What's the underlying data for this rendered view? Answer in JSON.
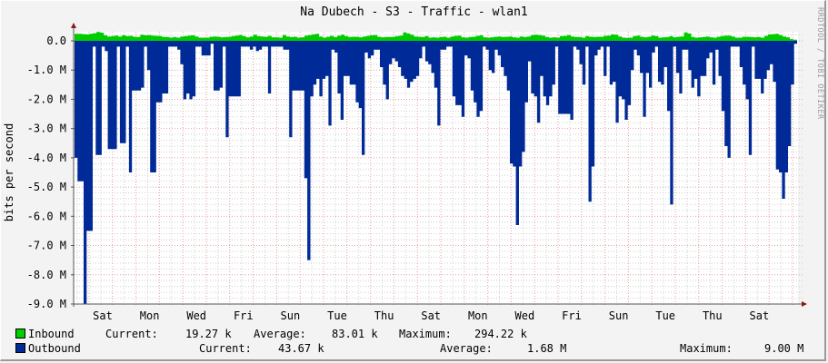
{
  "title": "Na Dubech - S3 - Traffic - wlan1",
  "watermark": "RRDTOOL / TOBI OETIKER",
  "colors": {
    "inbound": "#00cc00",
    "outbound": "#002a97",
    "background": "#f3f3f3",
    "plot_bg": "#ffffff",
    "major_grid": "#e8a0a0",
    "minor_grid": "#d0d0d0",
    "axis": "#555555",
    "arrow": "#8b1a1a"
  },
  "legend": {
    "inbound": {
      "label": "Inbound",
      "current_label": "Current:",
      "current": "19.27 k",
      "average_label": "Average:",
      "average": "83.01 k",
      "maximum_label": "Maximum:",
      "maximum": "294.22 k"
    },
    "outbound": {
      "label": "Outbound",
      "current_label": "Current:",
      "current": "43.67 k",
      "average_label": "Average:",
      "average": "1.68 M",
      "maximum_label": "Maximum:",
      "maximum": "9.00 M"
    }
  },
  "chart_data": {
    "type": "area",
    "title": "Na Dubech - S3 - Traffic - wlan1",
    "xlabel": "",
    "ylabel": "bits per second",
    "ylim": [
      -9000000,
      300000
    ],
    "y_ticks": [
      "0.0",
      "-1.0 M",
      "-2.0 M",
      "-3.0 M",
      "-4.0 M",
      "-5.0 M",
      "-6.0 M",
      "-7.0 M",
      "-8.0 M",
      "-9.0 M"
    ],
    "x_ticks": [
      "Sat",
      "Mon",
      "Wed",
      "Fri",
      "Sun",
      "Tue",
      "Thu",
      "Sat",
      "Mon",
      "Wed",
      "Fri",
      "Sun",
      "Tue",
      "Thu",
      "Sat"
    ],
    "grid": true,
    "legend_position": "bottom",
    "series": [
      {
        "name": "Inbound",
        "unit": "bps",
        "sign": "positive",
        "values_k": [
          240,
          240,
          230,
          220,
          240,
          260,
          300,
          280,
          190,
          150,
          160,
          180,
          150,
          190,
          160,
          170,
          140,
          130,
          210,
          190,
          200,
          180,
          170,
          160,
          130,
          130,
          110,
          130,
          110,
          150,
          160,
          180,
          190,
          150,
          110,
          110,
          110,
          140,
          150,
          140,
          120,
          130,
          140,
          160,
          180,
          200,
          160,
          120,
          150,
          210,
          160,
          150,
          140,
          170,
          120,
          120,
          110,
          200,
          150,
          130,
          140,
          110,
          120,
          180,
          200,
          220,
          240,
          150,
          110,
          140,
          170,
          130,
          180,
          210,
          160,
          130,
          140,
          140,
          120,
          150,
          170,
          190,
          200,
          140,
          120,
          130,
          130,
          140,
          160,
          180,
          290,
          250,
          210,
          150,
          140,
          130,
          160,
          110,
          120,
          110,
          130,
          140,
          110,
          150,
          170,
          180,
          120,
          110,
          130,
          140,
          170,
          190,
          120,
          110,
          120,
          140,
          150,
          130,
          140,
          150,
          120,
          110,
          150,
          130,
          150,
          200,
          210,
          200,
          180,
          130,
          110,
          120,
          110,
          160,
          170,
          200,
          150,
          130,
          130,
          110,
          160,
          140,
          130,
          140,
          140,
          170,
          180,
          220,
          210,
          150,
          110,
          100,
          110,
          160,
          180,
          140,
          120,
          140,
          180,
          160,
          110,
          120,
          130,
          160,
          120,
          140,
          150,
          290,
          250,
          130,
          110,
          120,
          130,
          150,
          120,
          110,
          140,
          160,
          180,
          180,
          150,
          110,
          110,
          140,
          140,
          130,
          120,
          130,
          110,
          170,
          220,
          230,
          240,
          200,
          150,
          120,
          60,
          40
        ]
      },
      {
        "name": "Outbound",
        "unit": "bps",
        "sign": "negative",
        "values_m": [
          4.0,
          4.8,
          4.8,
          9.0,
          6.5,
          6.5,
          0.2,
          3.9,
          3.9,
          0.2,
          0.35,
          3.7,
          3.7,
          3.7,
          0.2,
          3.5,
          3.5,
          0.2,
          4.5,
          1.7,
          1.7,
          1.7,
          1.6,
          0.2,
          1.0,
          4.5,
          4.5,
          2.1,
          2.1,
          1.8,
          1.8,
          0.2,
          0.2,
          0.2,
          0.3,
          0.8,
          2.0,
          1.8,
          2.0,
          1.9,
          0.2,
          0.2,
          0.5,
          0.5,
          0.5,
          0.1,
          1.7,
          1.7,
          1.6,
          0.2,
          3.3,
          1.9,
          1.9,
          1.9,
          1.9,
          0.2,
          0.2,
          0.2,
          0.3,
          0.2,
          0.35,
          0.3,
          0.2,
          0.2,
          1.8,
          0.2,
          0.2,
          0.2,
          0.2,
          0.3,
          0.3,
          3.3,
          1.7,
          1.7,
          1.7,
          1.7,
          4.7,
          7.5,
          1.9,
          1.5,
          1.3,
          1.9,
          1.3,
          1.2,
          2.9,
          0.3,
          0.4,
          1.8,
          2.7,
          1.2,
          1.2,
          1.5,
          1.5,
          2.1,
          2.3,
          3.9,
          0.4,
          0.6,
          0.5,
          0.3,
          0.3,
          0.9,
          1.5,
          2.0,
          0.8,
          0.6,
          0.7,
          0.9,
          1.2,
          1.3,
          1.6,
          1.4,
          1.3,
          1.2,
          0.6,
          0.2,
          0.7,
          0.8,
          1.1,
          1.6,
          2.9,
          0.3,
          0.3,
          0.2,
          0.2,
          1.9,
          2.2,
          2.2,
          2.6,
          0.5,
          0.6,
          1.7,
          2.1,
          2.6,
          2.4,
          0.2,
          0.3,
          1.0,
          1.1,
          0.3,
          0.5,
          0.9,
          1.2,
          1.7,
          4.2,
          4.3,
          6.3,
          4.3,
          3.8,
          2.1,
          0.7,
          1.8,
          1.9,
          2.8,
          1.2,
          1.9,
          2.2,
          1.9,
          1.5,
          0.2,
          2.5,
          2.5,
          2.5,
          2.5,
          2.7,
          0.2,
          0.3,
          0.8,
          1.5,
          0.2,
          5.5,
          4.3,
          0.5,
          0.3,
          0.2,
          1.2,
          0.2,
          1.5,
          1.4,
          2.8,
          1.9,
          2.0,
          2.7,
          2.2,
          1.0,
          0.3,
          0.5,
          1.1,
          2.6,
          1.1,
          1.6,
          0.4,
          0.2,
          1.4,
          1.5,
          0.9,
          2.4,
          5.6,
          0.2,
          1.1,
          1.8,
          0.3,
          0.3,
          1.0,
          1.6,
          1.3,
          1.9,
          1.2,
          1.2,
          0.6,
          0.4,
          1.5,
          0.3,
          1.2,
          2.4,
          3.6,
          4.0,
          0.2,
          0.2,
          0.2,
          0.9,
          1.5,
          2.0,
          3.9,
          0.2,
          1.3,
          1.3,
          1.8,
          1.3,
          1.0,
          0.8,
          1.4,
          4.4,
          4.5,
          5.4,
          4.5,
          3.6,
          1.5,
          0.1
        ]
      }
    ]
  },
  "axis": {
    "ylabel": "bits per second",
    "y_ticks": [
      "0.0",
      "-1.0 M",
      "-2.0 M",
      "-3.0 M",
      "-4.0 M",
      "-5.0 M",
      "-6.0 M",
      "-7.0 M",
      "-8.0 M",
      "-9.0 M"
    ],
    "x_ticks": [
      "Sat",
      "Mon",
      "Wed",
      "Fri",
      "Sun",
      "Tue",
      "Thu",
      "Sat",
      "Mon",
      "Wed",
      "Fri",
      "Sun",
      "Tue",
      "Thu",
      "Sat"
    ]
  }
}
